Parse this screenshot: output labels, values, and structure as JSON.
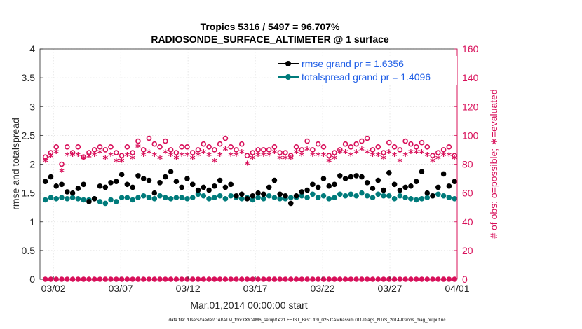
{
  "chart_data": {
    "type": "scatter",
    "title_line1": "Tropics 5316 / 5497 = 96.707%",
    "title_line2": "RADIOSONDE_SURFACE_ALTIMETER @ 1 surface",
    "xlabel": "Mar.01,2014 00:00:00 start",
    "ylabel_left": "rmse and totalspread",
    "ylabel_right": "# of obs: o=possible; ∗=evaluated",
    "footer": "data file: /Users/raeder/DAI/ATM_forcXX/CAM6_setup/f.e21.FHIST_BGC.f09_025.CAM6assim.011/Diags_NTrS_2014-03/obs_diag_output.nc",
    "xlim": [
      1,
      32
    ],
    "ylim_left": [
      0,
      4
    ],
    "ylim_right": [
      0,
      160
    ],
    "x_ticks": [
      2,
      7,
      12,
      17,
      22,
      27,
      32
    ],
    "x_tick_labels": [
      "03/02",
      "03/07",
      "03/12",
      "03/17",
      "03/22",
      "03/27",
      "04/01"
    ],
    "y_left_ticks": [
      0,
      0.5,
      1,
      1.5,
      2,
      2.5,
      3,
      3.5,
      4
    ],
    "y_left_tick_labels": [
      "0",
      "0.5",
      "1",
      "1.5",
      "2",
      "2.5",
      "3",
      "3.5",
      "4"
    ],
    "y_right_ticks": [
      0,
      20,
      40,
      60,
      80,
      100,
      120,
      140,
      160
    ],
    "y_right_tick_labels": [
      "0",
      "20",
      "40",
      "60",
      "80",
      "100",
      "120",
      "140",
      "160"
    ],
    "grid": true,
    "legend_position": "top-right",
    "colors": {
      "rmse": "#000000",
      "spread": "#007b7b",
      "obs": "#d8105a",
      "axis_right": "#d8105a",
      "legend_text": "#1f5ee6"
    },
    "series": [
      {
        "name": "rmse grand pr = 1.6356",
        "key": "rmse",
        "values": [
          1.7,
          1.78,
          1.62,
          1.65,
          1.52,
          1.5,
          1.58,
          1.65,
          1.35,
          1.4,
          1.62,
          1.6,
          1.68,
          1.7,
          1.82,
          1.65,
          1.6,
          1.8,
          1.75,
          1.72,
          1.5,
          1.68,
          1.78,
          1.87,
          1.7,
          1.6,
          1.75,
          1.65,
          1.55,
          1.6,
          1.55,
          1.62,
          1.72,
          1.6,
          1.65,
          1.45,
          1.48,
          1.4,
          1.45,
          1.5,
          1.48,
          1.6,
          1.72,
          1.48,
          1.45,
          1.32,
          1.45,
          1.52,
          1.55,
          1.65,
          1.6,
          1.75,
          1.62,
          1.65,
          1.8,
          1.75,
          1.78,
          1.8,
          1.78,
          1.68,
          1.58,
          1.72,
          1.55,
          1.85,
          1.65,
          1.55,
          1.6,
          1.62,
          1.7,
          1.87,
          1.5,
          1.45,
          1.6,
          1.83,
          1.62,
          1.7
        ]
      },
      {
        "name": "totalspread grand pr = 1.4096",
        "key": "spread",
        "values": [
          1.38,
          1.42,
          1.4,
          1.42,
          1.4,
          1.42,
          1.4,
          1.38,
          1.38,
          1.4,
          1.35,
          1.32,
          1.38,
          1.35,
          1.42,
          1.42,
          1.38,
          1.42,
          1.45,
          1.42,
          1.4,
          1.45,
          1.42,
          1.4,
          1.42,
          1.42,
          1.4,
          1.42,
          1.48,
          1.45,
          1.4,
          1.42,
          1.45,
          1.4,
          1.45,
          1.42,
          1.4,
          1.42,
          1.38,
          1.42,
          1.4,
          1.45,
          1.42,
          1.4,
          1.4,
          1.42,
          1.42,
          1.45,
          1.42,
          1.48,
          1.42,
          1.45,
          1.4,
          1.42,
          1.48,
          1.45,
          1.48,
          1.45,
          1.5,
          1.45,
          1.42,
          1.48,
          1.45,
          1.45,
          1.4,
          1.45,
          1.42,
          1.4,
          1.38,
          1.4,
          1.42,
          1.45,
          1.48,
          1.45,
          1.42,
          1.4
        ]
      },
      {
        "name": "possible",
        "key": "possible",
        "axis": "right",
        "values": [
          85,
          88,
          92,
          80,
          92,
          88,
          92,
          85,
          88,
          90,
          92,
          90,
          92,
          88,
          86,
          92,
          88,
          96,
          90,
          98,
          94,
          92,
          96,
          90,
          88,
          92,
          92,
          88,
          90,
          94,
          92,
          90,
          94,
          98,
          92,
          90,
          94,
          86,
          88,
          90,
          90,
          90,
          92,
          88,
          88,
          86,
          92,
          90,
          96,
          90,
          94,
          92,
          86,
          88,
          90,
          94,
          92,
          94,
          96,
          98,
          90,
          92,
          88,
          95,
          92,
          90,
          96,
          94,
          92,
          95,
          92,
          86,
          88,
          90,
          92,
          86
        ]
      },
      {
        "name": "evaluated",
        "key": "evaluated",
        "axis": "right",
        "values": [
          82,
          85,
          88,
          75,
          86,
          86,
          86,
          84,
          85,
          86,
          88,
          84,
          86,
          82,
          82,
          86,
          84,
          92,
          86,
          88,
          86,
          84,
          88,
          86,
          84,
          86,
          86,
          84,
          86,
          88,
          86,
          82,
          86,
          90,
          86,
          86,
          88,
          80,
          84,
          86,
          86,
          86,
          88,
          84,
          84,
          84,
          88,
          86,
          90,
          86,
          86,
          86,
          82,
          84,
          88,
          88,
          86,
          88,
          90,
          88,
          86,
          86,
          84,
          88,
          86,
          82,
          86,
          88,
          88,
          88,
          86,
          82,
          84,
          86,
          86,
          84
        ]
      },
      {
        "name": "zero-line",
        "key": "zeros",
        "axis": "right",
        "values": [
          0,
          0,
          0,
          0,
          0,
          0,
          0,
          0,
          0,
          0,
          0,
          0,
          0,
          0,
          0,
          0,
          0,
          0,
          0,
          0,
          0,
          0,
          0,
          0,
          0,
          0,
          0,
          0,
          0,
          0,
          0,
          0,
          0,
          0,
          0,
          0,
          0,
          0,
          0,
          0,
          0,
          0,
          0,
          0,
          0,
          0,
          0,
          0,
          0,
          0,
          0,
          0,
          0,
          0,
          0,
          0,
          0,
          0,
          0,
          0,
          0,
          0,
          0,
          0,
          0,
          0,
          0,
          0,
          0,
          0,
          0,
          0,
          0,
          0,
          0,
          0
        ]
      }
    ]
  }
}
